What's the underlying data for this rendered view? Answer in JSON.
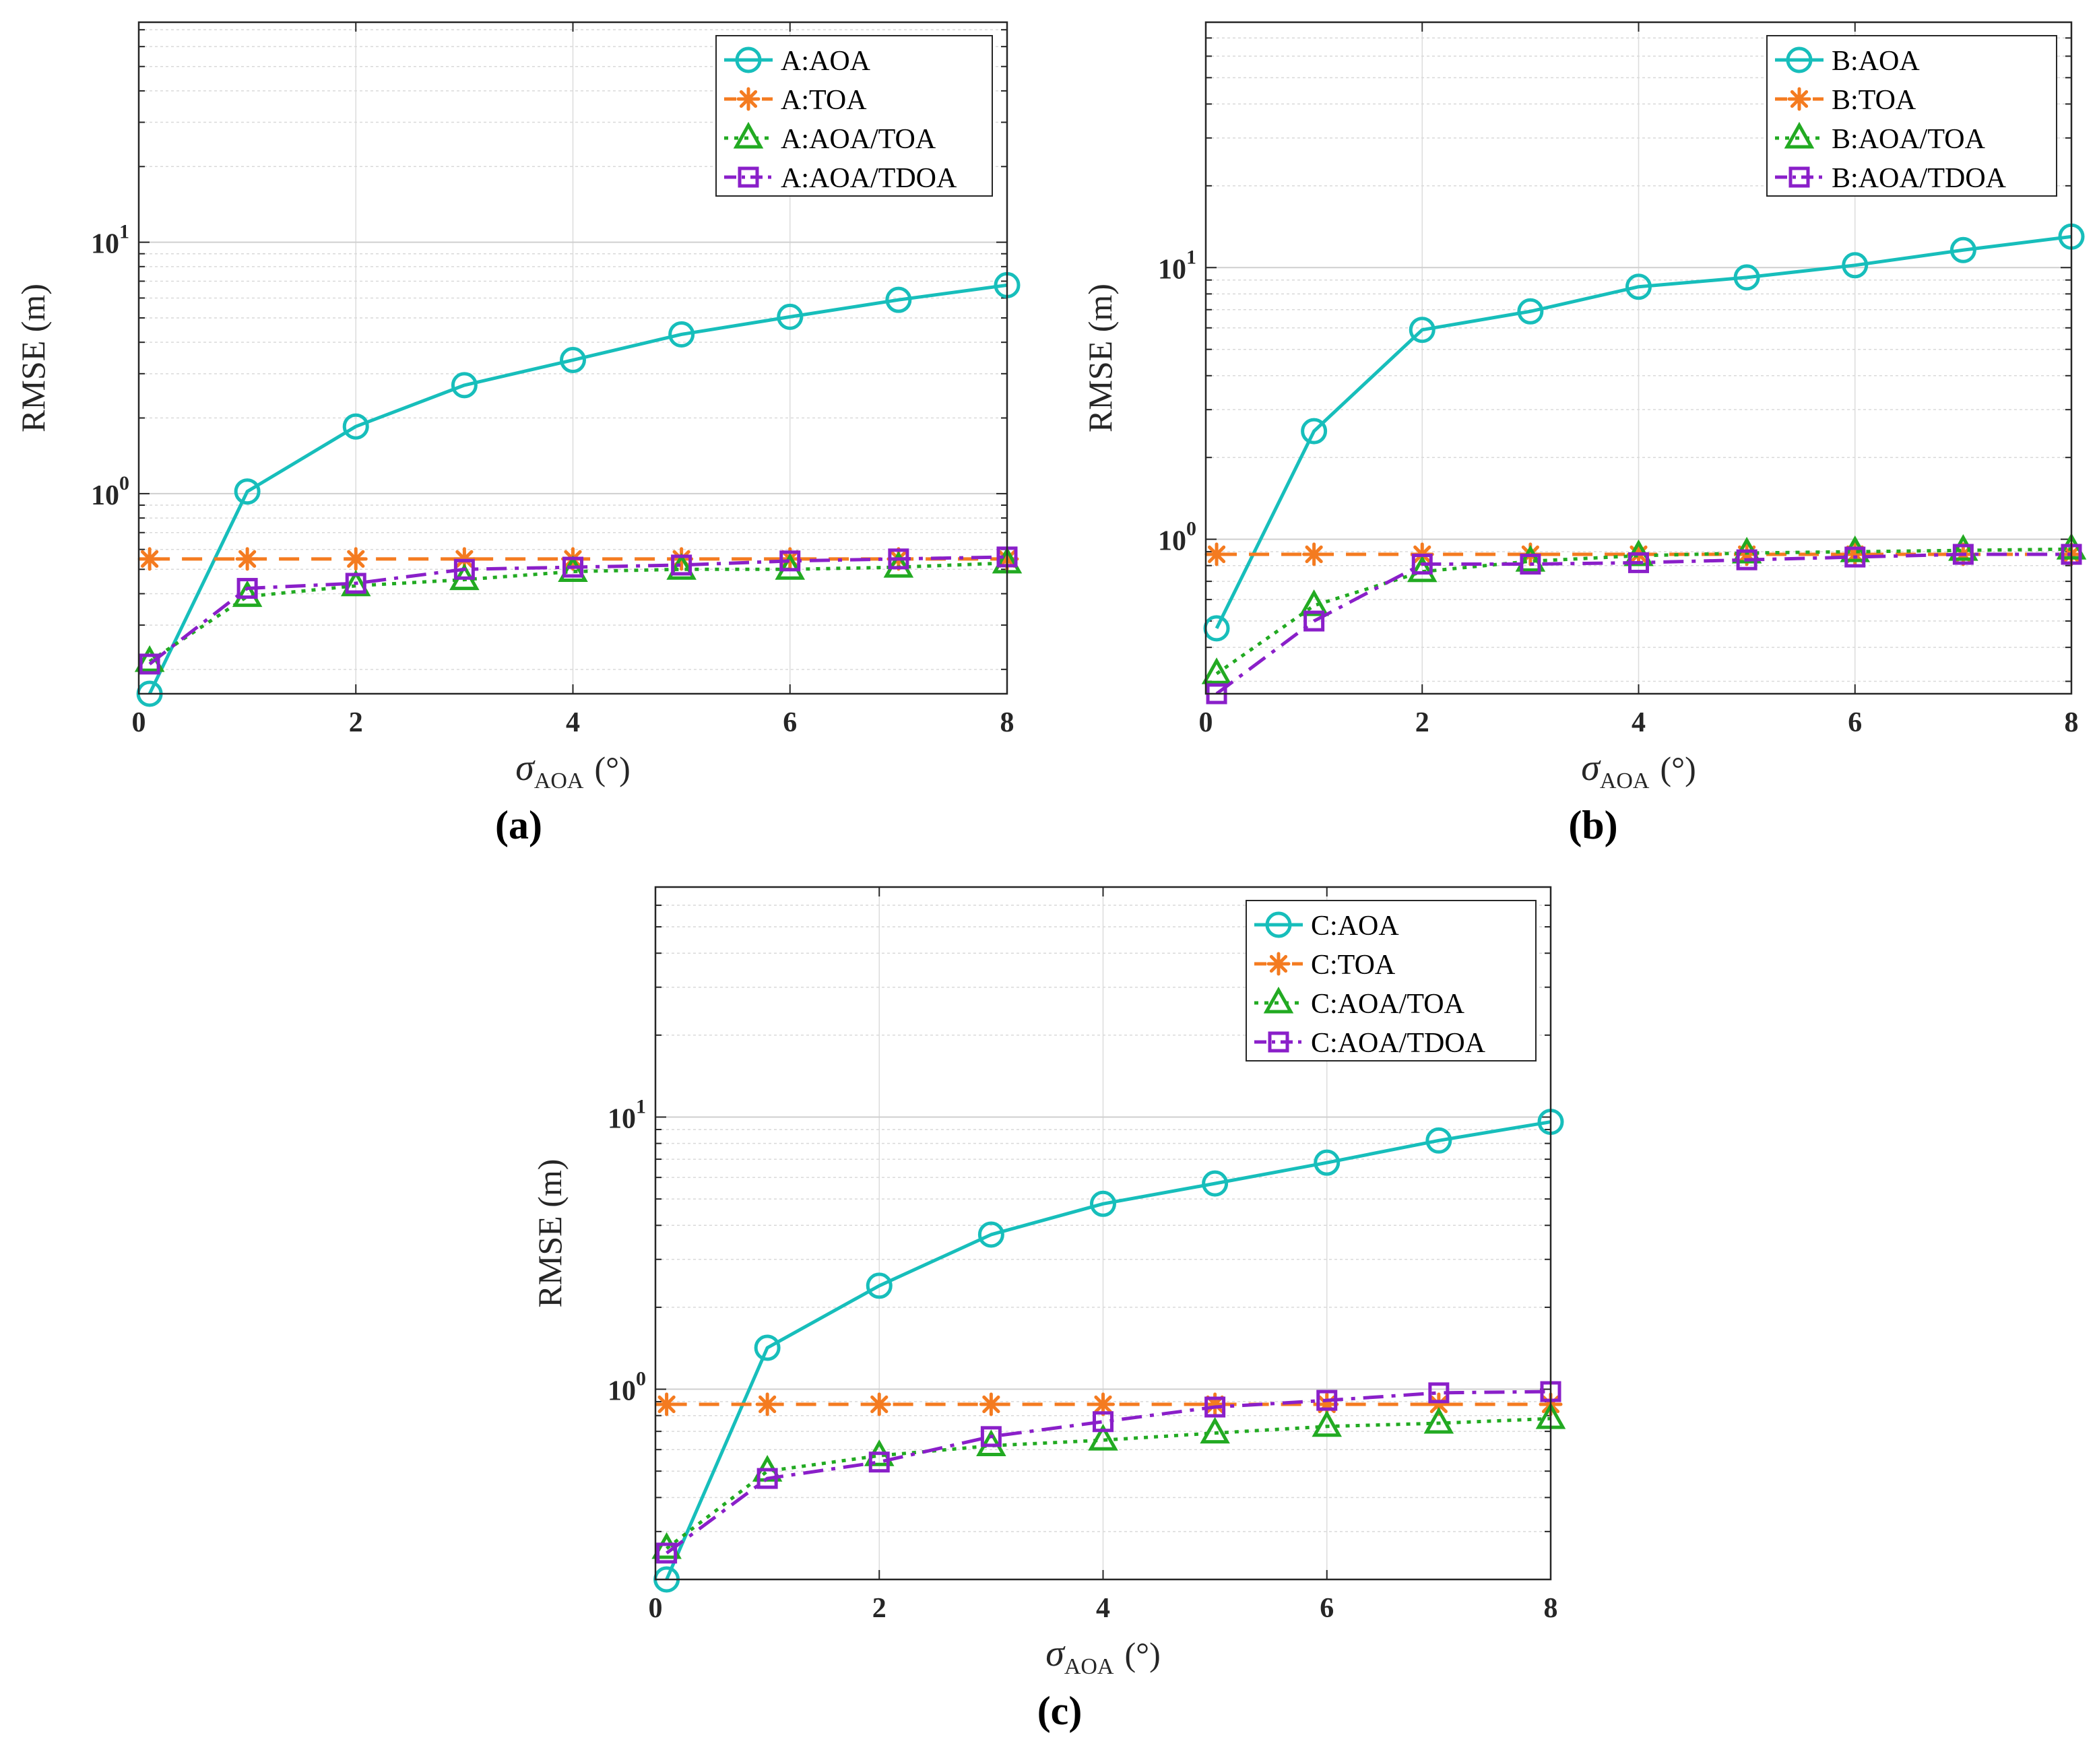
{
  "chart_data": [
    {
      "id": "a",
      "type": "line",
      "panel_label": "(a)",
      "xlabel": {
        "symbol": "σ",
        "subscript": "AOA",
        "unit": "(°)"
      },
      "ylabel": "RMSE (m)",
      "yscale": "log",
      "xlim": [
        0,
        8
      ],
      "ylim": [
        0.16,
        75
      ],
      "xticks": [
        0,
        2,
        4,
        6,
        8
      ],
      "yticks": [
        {
          "value": 1,
          "base": "10",
          "exponent": "0"
        },
        {
          "value": 10,
          "base": "10",
          "exponent": "1"
        }
      ],
      "grid": true,
      "legend_position": "top-right",
      "x": [
        0.1,
        1,
        2,
        3,
        4,
        5,
        6,
        7,
        8
      ],
      "series": [
        {
          "name": "A:AOA",
          "color": "#17BEBB",
          "dash": "solid",
          "marker": "circle",
          "values": [
            0.16,
            1.02,
            1.85,
            2.7,
            3.4,
            4.3,
            5.05,
            5.9,
            6.75
          ]
        },
        {
          "name": "A:TOA",
          "color": "#F47B20",
          "dash": "dashed",
          "marker": "asterisk",
          "values": [
            0.55,
            0.55,
            0.55,
            0.55,
            0.55,
            0.55,
            0.55,
            0.55,
            0.55
          ]
        },
        {
          "name": "A:AOA/TOA",
          "color": "#22AA22",
          "dash": "dotted",
          "marker": "triangle",
          "values": [
            0.215,
            0.39,
            0.43,
            0.455,
            0.49,
            0.5,
            0.5,
            0.51,
            0.53
          ]
        },
        {
          "name": "A:AOA/TDOA",
          "color": "#8A1FC9",
          "dash": "dashdot",
          "marker": "square",
          "values": [
            0.21,
            0.42,
            0.44,
            0.5,
            0.51,
            0.52,
            0.54,
            0.55,
            0.56
          ]
        }
      ]
    },
    {
      "id": "b",
      "type": "line",
      "panel_label": "(b)",
      "xlabel": {
        "symbol": "σ",
        "subscript": "AOA",
        "unit": "(°)"
      },
      "ylabel": "RMSE (m)",
      "yscale": "log",
      "xlim": [
        0,
        8
      ],
      "ylim": [
        0.27,
        80
      ],
      "xticks": [
        0,
        2,
        4,
        6,
        8
      ],
      "yticks": [
        {
          "value": 1,
          "base": "10",
          "exponent": "0"
        },
        {
          "value": 10,
          "base": "10",
          "exponent": "1"
        }
      ],
      "grid": true,
      "legend_position": "top-right",
      "x": [
        0.1,
        1,
        2,
        3,
        4,
        5,
        6,
        7,
        8
      ],
      "series": [
        {
          "name": "B:AOA",
          "color": "#17BEBB",
          "dash": "solid",
          "marker": "circle",
          "values": [
            0.47,
            2.5,
            5.9,
            6.9,
            8.5,
            9.2,
            10.2,
            11.6,
            13.0
          ]
        },
        {
          "name": "B:TOA",
          "color": "#F47B20",
          "dash": "dashed",
          "marker": "asterisk",
          "values": [
            0.88,
            0.88,
            0.88,
            0.88,
            0.88,
            0.88,
            0.88,
            0.88,
            0.88
          ]
        },
        {
          "name": "B:AOA/TOA",
          "color": "#22AA22",
          "dash": "dotted",
          "marker": "triangle",
          "values": [
            0.32,
            0.57,
            0.76,
            0.83,
            0.87,
            0.89,
            0.9,
            0.91,
            0.92
          ]
        },
        {
          "name": "B:AOA/TDOA",
          "color": "#8A1FC9",
          "dash": "dashdot",
          "marker": "square",
          "values": [
            0.27,
            0.5,
            0.81,
            0.81,
            0.82,
            0.84,
            0.86,
            0.88,
            0.88
          ]
        }
      ]
    },
    {
      "id": "c",
      "type": "line",
      "panel_label": "(c)",
      "xlabel": {
        "symbol": "σ",
        "subscript": "AOA",
        "unit": "(°)"
      },
      "ylabel": "RMSE (m)",
      "yscale": "log",
      "xlim": [
        0,
        8
      ],
      "ylim": [
        0.2,
        70
      ],
      "xticks": [
        0,
        2,
        4,
        6,
        8
      ],
      "yticks": [
        {
          "value": 1,
          "base": "10",
          "exponent": "0"
        },
        {
          "value": 10,
          "base": "10",
          "exponent": "1"
        }
      ],
      "grid": true,
      "legend_position": "top-right",
      "x": [
        0.1,
        1,
        2,
        3,
        4,
        5,
        6,
        7,
        8
      ],
      "series": [
        {
          "name": "C:AOA",
          "color": "#17BEBB",
          "dash": "solid",
          "marker": "circle",
          "values": [
            0.2,
            1.42,
            2.4,
            3.7,
            4.8,
            5.7,
            6.8,
            8.2,
            9.6
          ]
        },
        {
          "name": "C:TOA",
          "color": "#F47B20",
          "dash": "dashed",
          "marker": "asterisk",
          "values": [
            0.88,
            0.88,
            0.88,
            0.88,
            0.88,
            0.88,
            0.88,
            0.88,
            0.88
          ]
        },
        {
          "name": "C:AOA/TOA",
          "color": "#22AA22",
          "dash": "dotted",
          "marker": "triangle",
          "values": [
            0.26,
            0.5,
            0.57,
            0.62,
            0.65,
            0.69,
            0.73,
            0.75,
            0.78
          ]
        },
        {
          "name": "C:AOA/TDOA",
          "color": "#8A1FC9",
          "dash": "dashdot",
          "marker": "square",
          "values": [
            0.25,
            0.47,
            0.54,
            0.67,
            0.76,
            0.86,
            0.91,
            0.97,
            0.98
          ]
        }
      ]
    }
  ]
}
